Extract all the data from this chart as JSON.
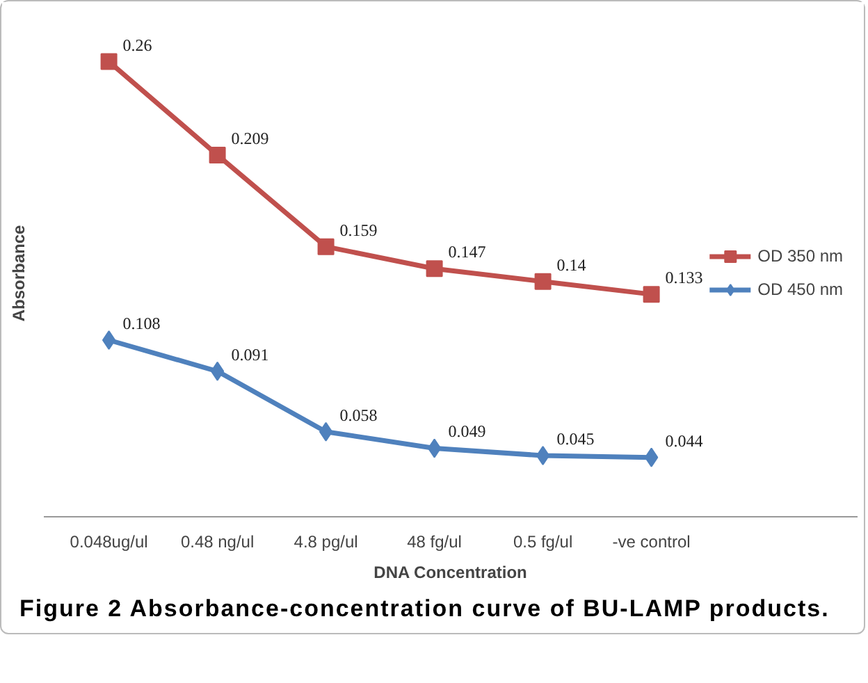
{
  "chart_data": {
    "type": "line",
    "xlabel": "DNA Concentration",
    "ylabel": "Absorbance",
    "categories": [
      "0.048ug/ul",
      "0.48 ng/ul",
      "4.8 pg/ul",
      "48 fg/ul",
      "0.5 fg/ul",
      "-ve control"
    ],
    "series": [
      {
        "name": "OD 350 nm",
        "color": "#c0504d",
        "marker": "square",
        "values": [
          0.26,
          0.209,
          0.159,
          0.147,
          0.14,
          0.133
        ]
      },
      {
        "name": "OD 450 nm",
        "color": "#4f81bd",
        "marker": "diamond",
        "values": [
          0.108,
          0.091,
          0.058,
          0.049,
          0.045,
          0.044
        ]
      }
    ],
    "data_labels": true,
    "grid": false,
    "legend": "right",
    "line_style": "solid",
    "annotations": [
      "Figure 2 Absorbance-concentration curve of BU-LAMP products."
    ]
  }
}
